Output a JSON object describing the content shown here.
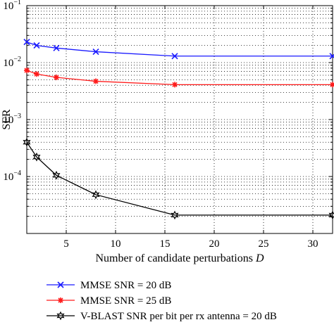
{
  "chart_data": {
    "type": "line",
    "title": "",
    "xlabel": "Number of candidate perturbations",
    "xlabel_var": "D",
    "ylabel": "SER",
    "xlim": [
      1,
      32
    ],
    "ylim": [
      1e-05,
      0.1
    ],
    "yscale": "log",
    "grid": true,
    "x_ticks": [
      5,
      10,
      15,
      20,
      25,
      30
    ],
    "y_ticks": [
      {
        "base": "10",
        "exp": "−1",
        "value": 0.1
      },
      {
        "base": "10",
        "exp": "−2",
        "value": 0.01
      },
      {
        "base": "10",
        "exp": "−3",
        "value": 0.001
      },
      {
        "base": "10",
        "exp": "−4",
        "value": 0.0001
      }
    ],
    "legend_position": "below",
    "series": [
      {
        "name": "MMSE SNR = 20 dB",
        "color": "#1a1aff",
        "marker": "x",
        "x": [
          1,
          2,
          4,
          8,
          16,
          32
        ],
        "y": [
          0.023,
          0.02,
          0.018,
          0.0155,
          0.013,
          0.013
        ]
      },
      {
        "name": "MMSE SNR = 25 dB",
        "color": "#ff1a1a",
        "marker": "star",
        "x": [
          1,
          2,
          4,
          8,
          16,
          32
        ],
        "y": [
          0.0073,
          0.0063,
          0.0055,
          0.0047,
          0.0041,
          0.0041
        ]
      },
      {
        "name": "V-BLAST SNR per bit per rx antenna = 20 dB",
        "color": "#000000",
        "marker": "hexstar",
        "x": [
          1,
          2,
          4,
          8,
          16,
          32
        ],
        "y": [
          0.0004,
          0.00022,
          0.000105,
          4.8e-05,
          2.1e-05,
          2.1e-05
        ]
      }
    ]
  }
}
